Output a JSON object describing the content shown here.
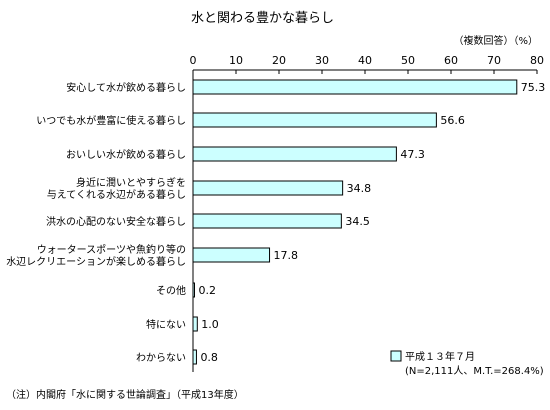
{
  "title": "水と関わる豊かな暮らし",
  "unit_label": "（複数回答）（%）",
  "note": "（注）内閣府「水に関する世論調査」（平成13年度）",
  "legend": {
    "label": "平成１３年７月",
    "detail": "(N=2,111人、M.T.=268.4%)"
  },
  "colors": {
    "bar_fill": "#ccffff",
    "bar_stroke": "#000000"
  },
  "chart_data": {
    "type": "bar",
    "orientation": "horizontal",
    "categories": [
      [
        "安心して水が飲める暮らし"
      ],
      [
        "いつでも水が豊富に使える暮らし"
      ],
      [
        "おいしい水が飲める暮らし"
      ],
      [
        "身近に潤いとやすらぎを",
        "与えてくれる水辺がある暮らし"
      ],
      [
        "洪水の心配のない安全な暮らし"
      ],
      [
        "ウォータースポーツや魚釣り等の",
        "水辺レクリエーションが楽しめる暮らし"
      ],
      [
        "その他"
      ],
      [
        "特にない"
      ],
      [
        "わからない"
      ]
    ],
    "value_labels": [
      "75.3",
      "56.6",
      "47.3",
      "34.8",
      "34.5",
      "17.8",
      "0.2",
      "1.0",
      "0.8"
    ],
    "series": [
      {
        "values": [
          75.3,
          56.6,
          47.3,
          34.8,
          34.5,
          17.8,
          0.2,
          1.0,
          0.8
        ]
      }
    ],
    "xlim": [
      0,
      80
    ],
    "xticks": [
      0,
      10,
      20,
      30,
      40,
      50,
      60,
      70,
      80
    ],
    "grid": false
  }
}
